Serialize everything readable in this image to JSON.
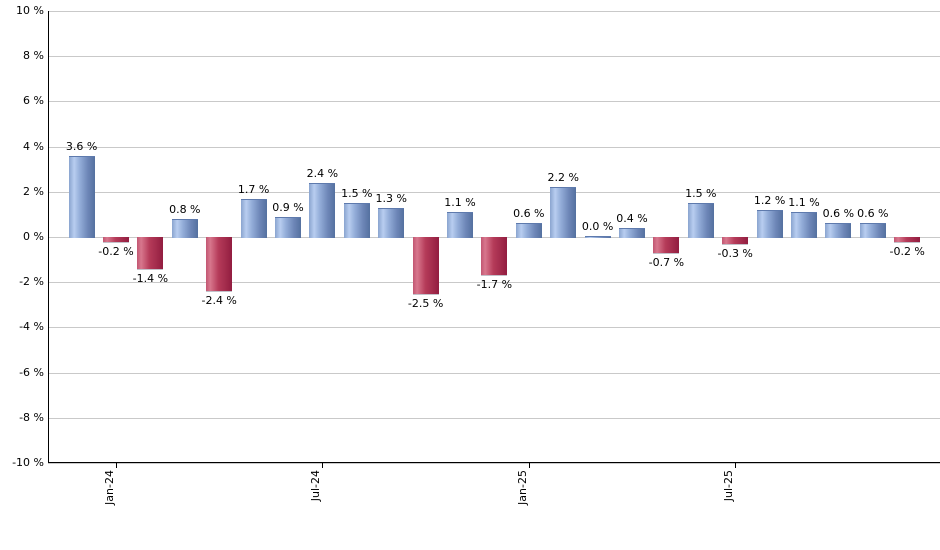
{
  "chart_data": {
    "type": "bar",
    "title": "",
    "description": "Monthly percent change bar chart; blue bars positive, red bars negative",
    "unit": "%",
    "y_axis": {
      "min": -10,
      "max": 10,
      "step": 2,
      "tick_labels": [
        "10 %",
        "8 %",
        "6 %",
        "4 %",
        "2 %",
        "0 %",
        "-2 %",
        "-4 %",
        "-6 %",
        "-8 %",
        "-10 %"
      ],
      "grid": true
    },
    "x_axis": {
      "tick_labels": [
        "Jan-24",
        "Jul-24",
        "Jan-25",
        "Jul-25"
      ],
      "tick_bar_indices": [
        1,
        7,
        13,
        19
      ]
    },
    "bars": [
      {
        "value": 3.6,
        "label": "3.6 %"
      },
      {
        "value": -0.2,
        "label": "-0.2 %"
      },
      {
        "value": -1.4,
        "label": "-1.4 %"
      },
      {
        "value": 0.8,
        "label": "0.8 %"
      },
      {
        "value": -2.4,
        "label": "-2.4 %"
      },
      {
        "value": 1.7,
        "label": "1.7 %"
      },
      {
        "value": 0.9,
        "label": "0.9 %"
      },
      {
        "value": 2.4,
        "label": "2.4 %"
      },
      {
        "value": 1.5,
        "label": "1.5 %"
      },
      {
        "value": 1.3,
        "label": "1.3 %"
      },
      {
        "value": -2.5,
        "label": "-2.5 %"
      },
      {
        "value": 1.1,
        "label": "1.1 %"
      },
      {
        "value": -1.7,
        "label": "-1.7 %"
      },
      {
        "value": 0.6,
        "label": "0.6 %"
      },
      {
        "value": 2.2,
        "label": "2.2 %"
      },
      {
        "value": 0.0,
        "label": "0.0 %"
      },
      {
        "value": 0.4,
        "label": "0.4 %"
      },
      {
        "value": -0.7,
        "label": "-0.7 %"
      },
      {
        "value": 1.5,
        "label": "1.5 %"
      },
      {
        "value": -0.3,
        "label": "-0.3 %"
      },
      {
        "value": 1.2,
        "label": "1.2 %"
      },
      {
        "value": 1.1,
        "label": "1.1 %"
      },
      {
        "value": 0.6,
        "label": "0.6 %"
      },
      {
        "value": 0.6,
        "label": "0.6 %"
      },
      {
        "value": -0.2,
        "label": "-0.2 %"
      }
    ],
    "colors": {
      "positive_bar_light": "#b8cdf0",
      "positive_bar_dark": "#54709f",
      "negative_bar_light": "#d8778d",
      "negative_bar_dark": "#921d40",
      "gridline": "#c9c9c9",
      "axis": "#000000",
      "label_text": "#000000",
      "background": "#ffffff"
    },
    "legend": null
  }
}
